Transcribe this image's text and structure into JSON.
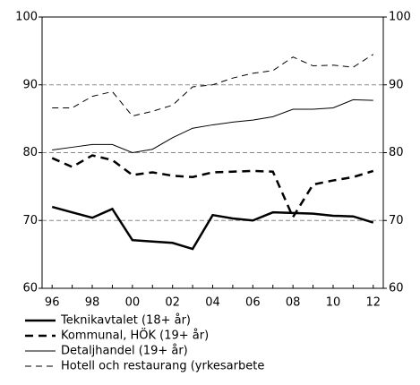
{
  "chart_data": {
    "type": "line",
    "categories": [
      "96",
      null,
      "98",
      null,
      "00",
      null,
      "02",
      null,
      "04",
      null,
      "06",
      null,
      "08",
      null,
      "10",
      null,
      "12"
    ],
    "series": [
      {
        "name": "Teknikavtalet (18+ år)",
        "color": "#000000",
        "linewidth": 2.5,
        "linestyle": "solid",
        "values": [
          72.0,
          71.2,
          70.4,
          71.7,
          67.1,
          66.9,
          66.7,
          65.8,
          70.8,
          70.3,
          70.0,
          71.2,
          71.1,
          71.0,
          70.7,
          70.6,
          69.7
        ]
      },
      {
        "name": "Kommunal, HÖK (19+ år)",
        "color": "#000000",
        "linewidth": 2.5,
        "linestyle": "dashed",
        "values": [
          79.2,
          77.9,
          79.6,
          78.9,
          76.7,
          77.1,
          76.6,
          76.4,
          77.1,
          77.2,
          77.3,
          77.2,
          70.5,
          75.3,
          75.9,
          76.4,
          77.3
        ]
      },
      {
        "name": "Detaljhandel (19+ år)",
        "color": "#000000",
        "linewidth": 1,
        "linestyle": "solid",
        "values": [
          80.4,
          80.8,
          81.2,
          81.2,
          80.0,
          80.5,
          82.2,
          83.6,
          84.1,
          84.5,
          84.8,
          85.3,
          86.4,
          86.4,
          86.6,
          87.8,
          87.7
        ]
      },
      {
        "name": "Hotell och restaurang (yrkesarbete",
        "color": "#000000",
        "linewidth": 1,
        "linestyle": "dashed",
        "values": [
          86.6,
          86.6,
          88.3,
          89.0,
          85.4,
          86.1,
          87.0,
          89.7,
          90.0,
          91.0,
          91.7,
          92.1,
          94.1,
          92.8,
          92.9,
          92.6,
          94.5
        ]
      }
    ],
    "ylim": [
      60,
      100
    ],
    "yticks": [
      60,
      70,
      80,
      90,
      100
    ],
    "y2lim": [
      60,
      100
    ],
    "y2ticks": [
      60,
      70,
      80,
      90,
      100
    ],
    "grid": true,
    "legend": "bottom"
  }
}
